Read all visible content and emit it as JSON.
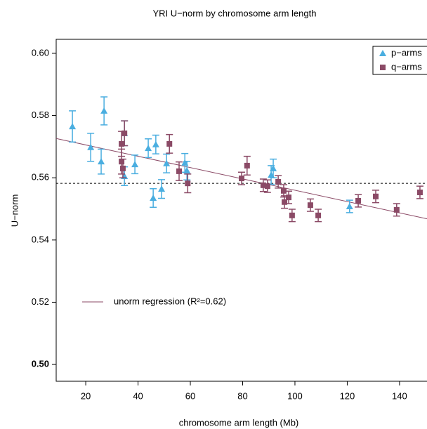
{
  "chart_data": {
    "type": "scatter",
    "title": "YRI  U−norm by chromosome arm length",
    "x_label": "chromosome arm length (Mb)",
    "y_label": "U−norm",
    "xlim": [
      8.7,
      150.5
    ],
    "ylim": [
      0.4946,
      0.6045
    ],
    "xticks": [
      20,
      40,
      60,
      80,
      100,
      120,
      140
    ],
    "yticks": [
      {
        "value": 0.5,
        "label": "0.50"
      },
      {
        "value": 0.52,
        "label": "0.52"
      },
      {
        "value": 0.54,
        "label": "0.54"
      },
      {
        "value": 0.56,
        "label": "0.56"
      },
      {
        "value": 0.58,
        "label": "0.58"
      },
      {
        "value": 0.6,
        "label": "0.60"
      }
    ],
    "mean_line": 0.5582,
    "regression": {
      "label": "unorm regression (R²=0.62)",
      "intercept": 0.5742,
      "slope": -0.000182,
      "color": "#8b4a66"
    },
    "series": [
      {
        "name": "p−arms",
        "color": "#4aaee0",
        "marker": "triangle",
        "x": [
          14.9,
          21.9,
          25.9,
          27,
          34.8,
          34.8,
          38.8,
          43.9,
          45.8,
          46.8,
          49,
          50.9,
          57.9,
          58.7,
          90.9,
          91.7,
          120.9
        ],
        "values": [
          0.5765,
          0.5698,
          0.5652,
          0.5815,
          0.5605,
          0.5743,
          0.5643,
          0.5695,
          0.5535,
          0.5707,
          0.5564,
          0.5646,
          0.5648,
          0.5623,
          0.5609,
          0.563,
          0.5508
        ],
        "errors": [
          0.005,
          0.0045,
          0.004,
          0.0045,
          0.003,
          0.004,
          0.003,
          0.003,
          0.003,
          0.003,
          0.003,
          0.003,
          0.003,
          0.003,
          0.003,
          0.003,
          0.002
        ]
      },
      {
        "name": "q−arms",
        "color": "#8b4a66",
        "marker": "square",
        "x": [
          33.7,
          33.7,
          34.2,
          34.8,
          52,
          55.7,
          59,
          79.6,
          81.7,
          87.9,
          89.5,
          93.6,
          95.7,
          96,
          97.6,
          98.9,
          105.9,
          108.9,
          124.2,
          130.9,
          138.9,
          147.8
        ],
        "values": [
          0.5709,
          0.5652,
          0.563,
          0.5743,
          0.5709,
          0.5621,
          0.5582,
          0.5598,
          0.5639,
          0.5576,
          0.5573,
          0.5587,
          0.5558,
          0.5522,
          0.5537,
          0.5479,
          0.5512,
          0.5479,
          0.5526,
          0.554,
          0.5497,
          0.5553
        ],
        "errors": [
          0.004,
          0.004,
          0.003,
          0.004,
          0.003,
          0.003,
          0.003,
          0.002,
          0.003,
          0.002,
          0.002,
          0.002,
          0.002,
          0.002,
          0.002,
          0.002,
          0.002,
          0.002,
          0.002,
          0.002,
          0.002,
          0.002
        ]
      }
    ]
  }
}
